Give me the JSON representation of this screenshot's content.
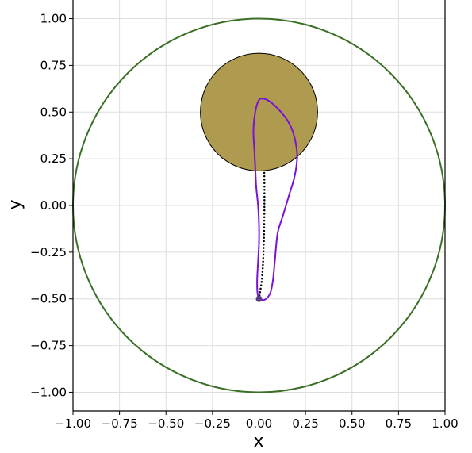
{
  "chart_data": {
    "type": "line",
    "title": "",
    "xlabel": "x",
    "ylabel": "y",
    "xlim": [
      -1.0,
      1.0
    ],
    "ylim": [
      -1.1,
      1.1
    ],
    "grid": true,
    "x_ticks": [
      -1.0,
      -0.75,
      -0.5,
      -0.25,
      0.0,
      0.25,
      0.5,
      0.75,
      1.0
    ],
    "y_ticks": [
      -1.0,
      -0.75,
      -0.5,
      -0.25,
      0.0,
      0.25,
      0.5,
      0.75,
      1.0
    ],
    "x_tick_labels": [
      "−1.00",
      "−0.75",
      "−0.50",
      "−0.25",
      "0.00",
      "0.25",
      "0.50",
      "0.75",
      "1.00"
    ],
    "y_tick_labels": [
      "−1.00",
      "−0.75",
      "−0.50",
      "−0.25",
      "0.00",
      "0.25",
      "0.50",
      "0.75",
      "1.00"
    ],
    "boundary_circle": {
      "center": [
        0.0,
        0.0
      ],
      "radius": 1.0,
      "color": "#3a7025"
    },
    "obstacle_disk": {
      "center": [
        0.0,
        0.5
      ],
      "radius": 0.315,
      "fill": "#ae9b4f",
      "edge": "#000000"
    },
    "start_point": {
      "x": 0.0,
      "y": -0.5,
      "color": "#5b3a8c"
    },
    "series": [
      {
        "style": "solid",
        "color": "#7b12d6",
        "points": [
          [
            0.0,
            -0.5
          ],
          [
            0.03,
            -0.505
          ],
          [
            0.06,
            -0.47
          ],
          [
            0.075,
            -0.4
          ],
          [
            0.085,
            -0.3
          ],
          [
            0.1,
            -0.15
          ],
          [
            0.13,
            -0.05
          ],
          [
            0.16,
            0.05
          ],
          [
            0.19,
            0.15
          ],
          [
            0.205,
            0.25
          ],
          [
            0.2,
            0.32
          ],
          [
            0.18,
            0.4
          ],
          [
            0.15,
            0.46
          ],
          [
            0.1,
            0.52
          ],
          [
            0.06,
            0.555
          ],
          [
            0.03,
            0.57
          ],
          [
            0.0,
            0.565
          ],
          [
            -0.02,
            0.5
          ],
          [
            -0.03,
            0.4
          ],
          [
            -0.025,
            0.3
          ],
          [
            -0.02,
            0.2
          ],
          [
            -0.015,
            0.1
          ],
          [
            -0.005,
            0.0
          ],
          [
            0.0,
            -0.1
          ],
          [
            0.0,
            -0.2
          ],
          [
            -0.005,
            -0.3
          ],
          [
            -0.01,
            -0.4
          ],
          [
            -0.008,
            -0.47
          ],
          [
            0.0,
            -0.5
          ]
        ]
      },
      {
        "style": "dotted",
        "color": "#000000",
        "points": [
          [
            0.0,
            -0.5
          ],
          [
            0.015,
            -0.4
          ],
          [
            0.022,
            -0.3
          ],
          [
            0.026,
            -0.2
          ],
          [
            0.028,
            -0.1
          ],
          [
            0.029,
            0.0
          ],
          [
            0.029,
            0.1
          ],
          [
            0.028,
            0.19
          ]
        ]
      }
    ]
  }
}
